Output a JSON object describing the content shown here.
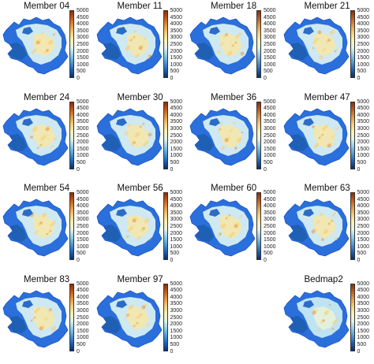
{
  "colorbar": {
    "ticks": [
      "5000",
      "4500",
      "4000",
      "3500",
      "3000",
      "2500",
      "2000",
      "1500",
      "1000",
      "500",
      "0"
    ],
    "colors": [
      "#08306b",
      "#1f5fb4",
      "#4a9ad6",
      "#8fcdea",
      "#dff1e8",
      "#fbf2b0",
      "#f6cf7a",
      "#e69840",
      "#c15b1c",
      "#8c2d04"
    ]
  },
  "panels": [
    {
      "title": "Member 04"
    },
    {
      "title": "Member 11"
    },
    {
      "title": "Member 18"
    },
    {
      "title": "Member 21"
    },
    {
      "title": "Member 24"
    },
    {
      "title": "Member 30"
    },
    {
      "title": "Member 36"
    },
    {
      "title": "Member 47"
    },
    {
      "title": "Member 54"
    },
    {
      "title": "Member 56"
    },
    {
      "title": "Member 60"
    },
    {
      "title": "Member 63"
    },
    {
      "title": "Member 83"
    },
    {
      "title": "Member 97"
    },
    {
      "title": "Bedmap2"
    }
  ]
}
